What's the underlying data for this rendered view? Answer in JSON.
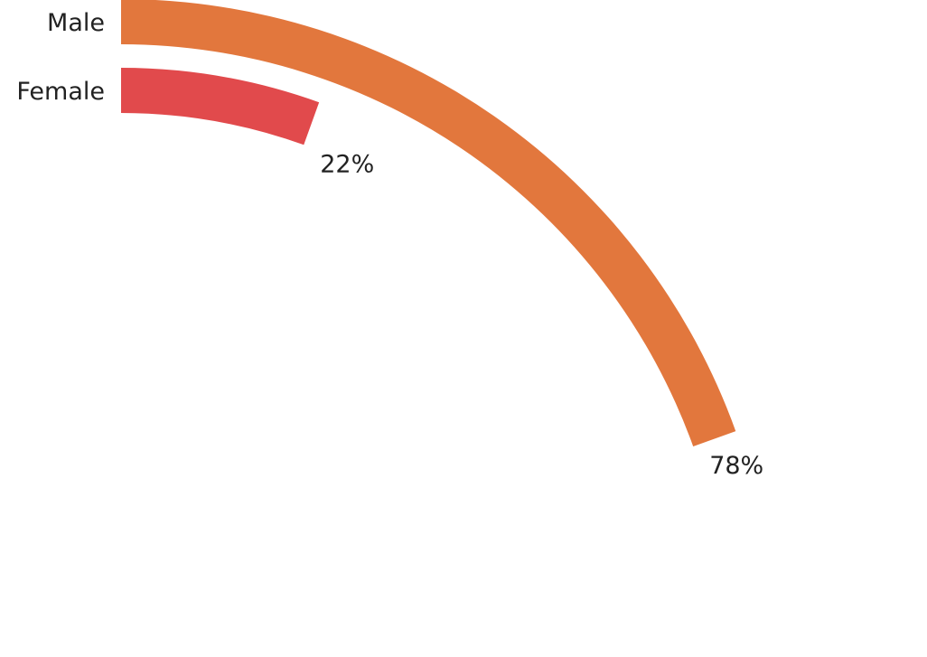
{
  "chart_data": {
    "type": "radial-bar",
    "categories": [
      "Male",
      "Female"
    ],
    "series": [
      {
        "values": [
          78,
          22
        ]
      }
    ],
    "value_labels": [
      "78%",
      "22%"
    ],
    "max_value": 100,
    "grid": false,
    "legend": "none",
    "colors": [
      "#E2773D",
      "#E14A4C"
    ]
  }
}
